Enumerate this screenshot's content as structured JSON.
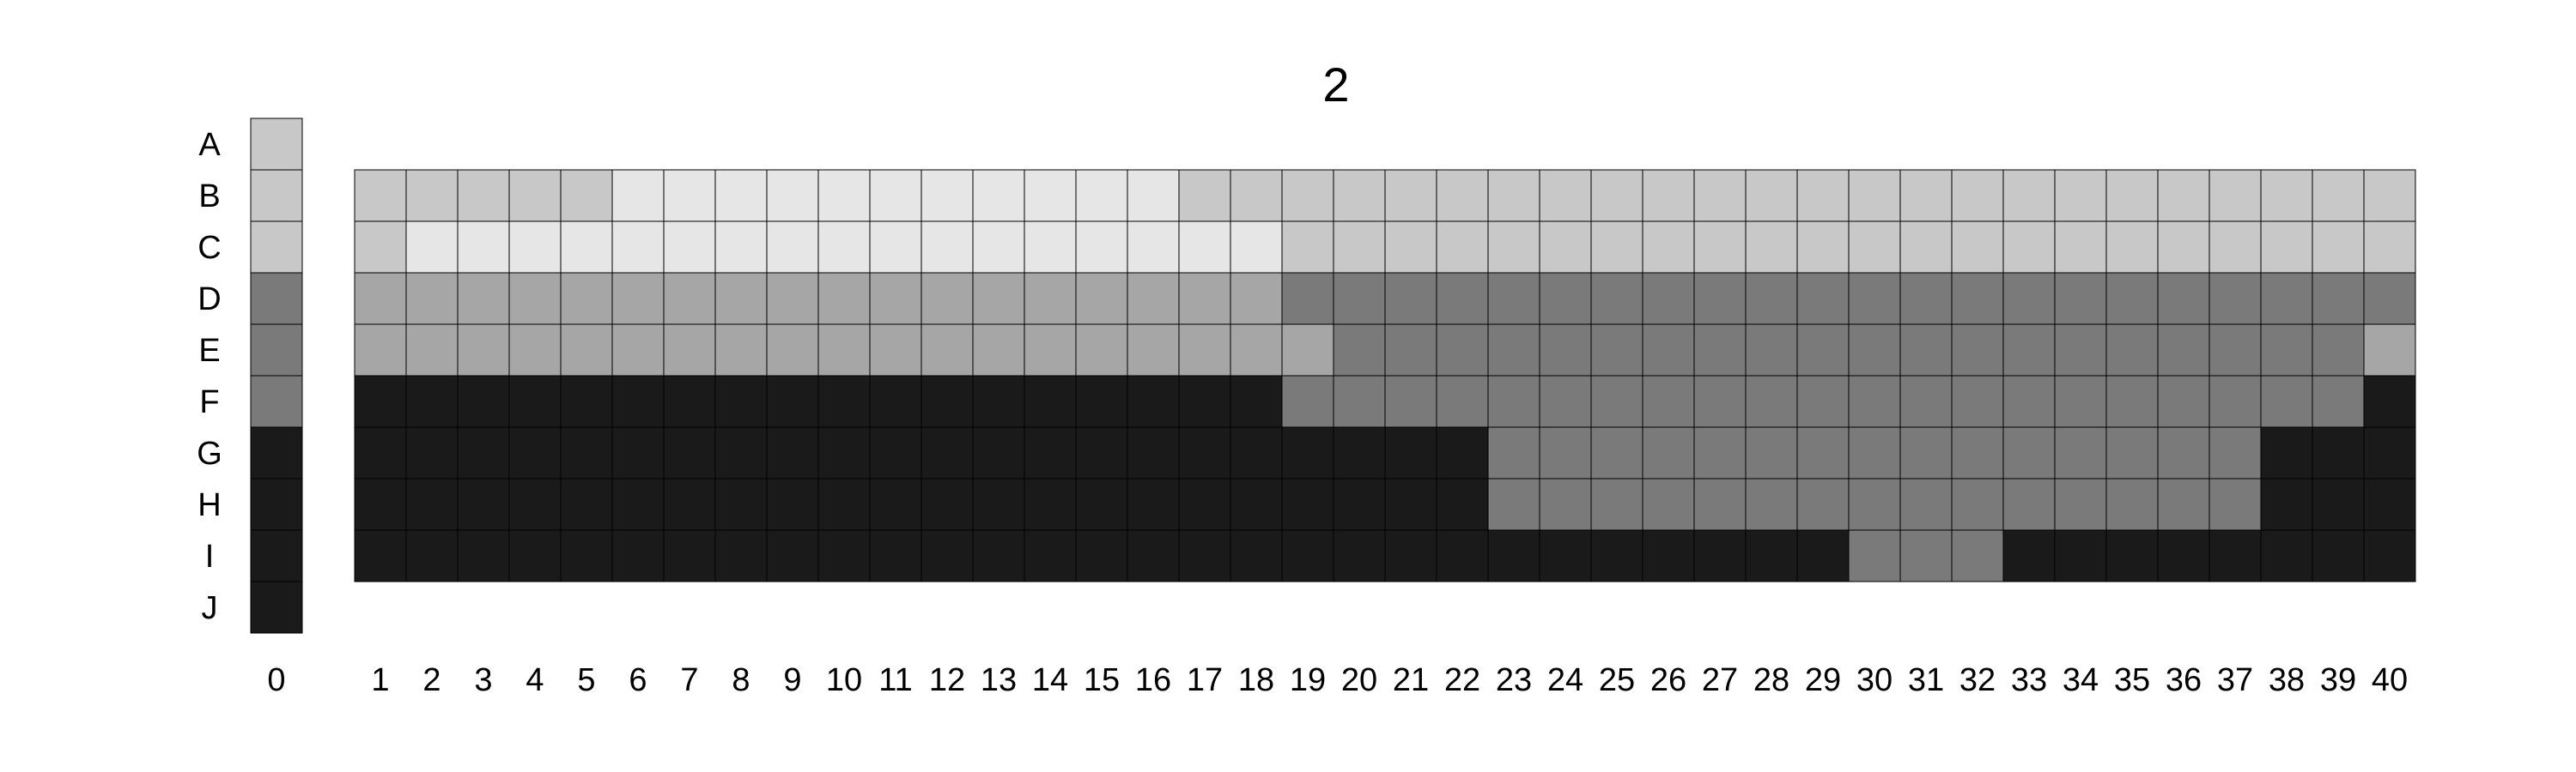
{
  "chart_data": {
    "type": "heatmap",
    "title": "2",
    "row_labels": [
      "A",
      "B",
      "C",
      "D",
      "E",
      "F",
      "G",
      "H",
      "I",
      "J"
    ],
    "reference_column": {
      "label": "0",
      "levels": [
        3,
        3,
        3,
        1,
        1,
        1,
        0,
        0,
        0,
        0
      ]
    },
    "column_labels": [
      "1",
      "2",
      "3",
      "4",
      "5",
      "6",
      "7",
      "8",
      "9",
      "10",
      "11",
      "12",
      "13",
      "14",
      "15",
      "16",
      "17",
      "18",
      "19",
      "20",
      "21",
      "22",
      "23",
      "24",
      "25",
      "26",
      "27",
      "28",
      "29",
      "30",
      "31",
      "32",
      "33",
      "34",
      "35",
      "36",
      "37",
      "38",
      "39",
      "40"
    ],
    "grid_rows": [
      "B",
      "C",
      "D",
      "E",
      "F",
      "G",
      "H",
      "I"
    ],
    "grid": [
      [
        3,
        3,
        3,
        3,
        3,
        4,
        4,
        4,
        4,
        4,
        4,
        4,
        4,
        4,
        4,
        4,
        3,
        3,
        3,
        3,
        3,
        3,
        3,
        3,
        3,
        3,
        3,
        3,
        3,
        3,
        3,
        3,
        3,
        3,
        3,
        3,
        3,
        3,
        3,
        3
      ],
      [
        3,
        4,
        4,
        4,
        4,
        4,
        4,
        4,
        4,
        4,
        4,
        4,
        4,
        4,
        4,
        4,
        4,
        4,
        3,
        3,
        3,
        3,
        3,
        3,
        3,
        3,
        3,
        3,
        3,
        3,
        3,
        3,
        3,
        3,
        3,
        3,
        3,
        3,
        3,
        3
      ],
      [
        2,
        2,
        2,
        2,
        2,
        2,
        2,
        2,
        2,
        2,
        2,
        2,
        2,
        2,
        2,
        2,
        2,
        2,
        1,
        1,
        1,
        1,
        1,
        1,
        1,
        1,
        1,
        1,
        1,
        1,
        1,
        1,
        1,
        1,
        1,
        1,
        1,
        1,
        1,
        1
      ],
      [
        2,
        2,
        2,
        2,
        2,
        2,
        2,
        2,
        2,
        2,
        2,
        2,
        2,
        2,
        2,
        2,
        2,
        2,
        2,
        1,
        1,
        1,
        1,
        1,
        1,
        1,
        1,
        1,
        1,
        1,
        1,
        1,
        1,
        1,
        1,
        1,
        1,
        1,
        1,
        2
      ],
      [
        0,
        0,
        0,
        0,
        0,
        0,
        0,
        0,
        0,
        0,
        0,
        0,
        0,
        0,
        0,
        0,
        0,
        0,
        1,
        1,
        1,
        1,
        1,
        1,
        1,
        1,
        1,
        1,
        1,
        1,
        1,
        1,
        1,
        1,
        1,
        1,
        1,
        1,
        1,
        0
      ],
      [
        0,
        0,
        0,
        0,
        0,
        0,
        0,
        0,
        0,
        0,
        0,
        0,
        0,
        0,
        0,
        0,
        0,
        0,
        0,
        0,
        0,
        0,
        1,
        1,
        1,
        1,
        1,
        1,
        1,
        1,
        1,
        1,
        1,
        1,
        1,
        1,
        1,
        0,
        0,
        0
      ],
      [
        0,
        0,
        0,
        0,
        0,
        0,
        0,
        0,
        0,
        0,
        0,
        0,
        0,
        0,
        0,
        0,
        0,
        0,
        0,
        0,
        0,
        0,
        1,
        1,
        1,
        1,
        1,
        1,
        1,
        1,
        1,
        1,
        1,
        1,
        1,
        1,
        1,
        0,
        0,
        0
      ],
      [
        0,
        0,
        0,
        0,
        0,
        0,
        0,
        0,
        0,
        0,
        0,
        0,
        0,
        0,
        0,
        0,
        0,
        0,
        0,
        0,
        0,
        0,
        0,
        0,
        0,
        0,
        0,
        0,
        0,
        1,
        1,
        1,
        0,
        0,
        0,
        0,
        0,
        0,
        0,
        0
      ]
    ],
    "level_colors": [
      "#1a1a1a",
      "#7a7a7a",
      "#a6a6a6",
      "#c8c8c8",
      "#e6e6e6"
    ],
    "legend": "none",
    "grid_lines": true
  }
}
